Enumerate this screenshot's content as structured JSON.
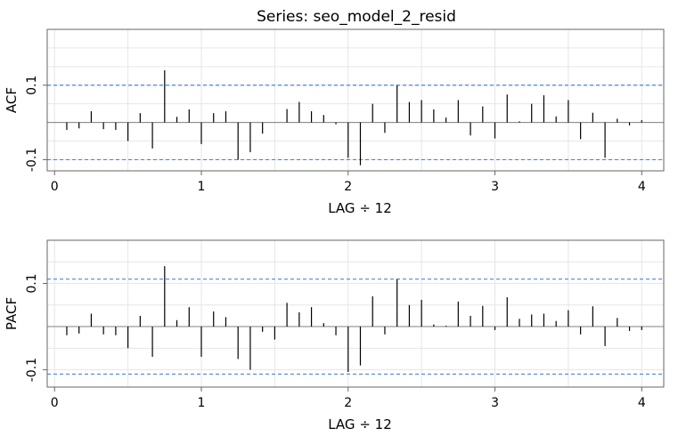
{
  "title": "Series:  seo_model_2_resid",
  "chart_data": [
    {
      "type": "bar",
      "name": "ACF",
      "ylabel": "ACF",
      "xlabel": "LAG ÷ 12",
      "xlim": [
        -0.05,
        4.15
      ],
      "ylim": [
        -0.13,
        0.25
      ],
      "x_ticks": [
        0,
        1,
        2,
        3,
        4
      ],
      "y_ticks": [
        -0.1,
        0.1
      ],
      "grid_x": [
        0,
        0.5,
        1,
        1.5,
        2,
        2.5,
        3,
        3.5,
        4
      ],
      "grid_y": [
        -0.15,
        -0.1,
        -0.05,
        0,
        0.05,
        0.1,
        0.15,
        0.2
      ],
      "confidence_bound": 0.1,
      "lags": [
        0.0833,
        0.1667,
        0.25,
        0.3333,
        0.4167,
        0.5,
        0.5833,
        0.6667,
        0.75,
        0.8333,
        0.9167,
        1.0,
        1.0833,
        1.1667,
        1.25,
        1.3333,
        1.4167,
        1.5,
        1.5833,
        1.6667,
        1.75,
        1.8333,
        1.9167,
        2.0,
        2.0833,
        2.1667,
        2.25,
        2.3333,
        2.4167,
        2.5,
        2.5833,
        2.6667,
        2.75,
        2.8333,
        2.9167,
        3.0,
        3.0833,
        3.1667,
        3.25,
        3.3333,
        3.4167,
        3.5,
        3.5833,
        3.6667,
        3.75,
        3.8333,
        3.9167,
        4.0
      ],
      "values": [
        -0.02,
        -0.016,
        0.03,
        -0.018,
        -0.02,
        -0.05,
        0.025,
        -0.07,
        0.14,
        0.015,
        0.035,
        -0.058,
        0.025,
        0.03,
        -0.1,
        -0.08,
        -0.03,
        0,
        0.036,
        0.055,
        0.03,
        0.02,
        -0.005,
        -0.095,
        -0.115,
        0.05,
        -0.028,
        0.1,
        0.055,
        0.06,
        0.035,
        0.013,
        0.06,
        -0.035,
        0.043,
        -0.043,
        0.075,
        0.003,
        0.05,
        0.073,
        0.016,
        0.06,
        -0.045,
        0.026,
        -0.095,
        0.01,
        -0.008,
        0.006
      ]
    },
    {
      "type": "bar",
      "name": "PACF",
      "ylabel": "PACF",
      "xlabel": "LAG ÷ 12",
      "xlim": [
        -0.05,
        4.15
      ],
      "ylim": [
        -0.14,
        0.2
      ],
      "x_ticks": [
        0,
        1,
        2,
        3,
        4
      ],
      "y_ticks": [
        -0.1,
        0.1
      ],
      "grid_x": [
        0,
        0.5,
        1,
        1.5,
        2,
        2.5,
        3,
        3.5,
        4
      ],
      "grid_y": [
        -0.1,
        -0.05,
        0,
        0.05,
        0.1,
        0.15
      ],
      "confidence_bound": 0.11,
      "lags": [
        0.0833,
        0.1667,
        0.25,
        0.3333,
        0.4167,
        0.5,
        0.5833,
        0.6667,
        0.75,
        0.8333,
        0.9167,
        1.0,
        1.0833,
        1.1667,
        1.25,
        1.3333,
        1.4167,
        1.5,
        1.5833,
        1.6667,
        1.75,
        1.8333,
        1.9167,
        2.0,
        2.0833,
        2.1667,
        2.25,
        2.3333,
        2.4167,
        2.5,
        2.5833,
        2.6667,
        2.75,
        2.8333,
        2.9167,
        3.0,
        3.0833,
        3.1667,
        3.25,
        3.3333,
        3.4167,
        3.5,
        3.5833,
        3.6667,
        3.75,
        3.8333,
        3.9167,
        4.0
      ],
      "values": [
        -0.02,
        -0.016,
        0.03,
        -0.018,
        -0.02,
        -0.05,
        0.025,
        -0.07,
        0.14,
        0.015,
        0.045,
        -0.07,
        0.035,
        0.022,
        -0.075,
        -0.1,
        -0.012,
        -0.03,
        0.055,
        0.033,
        0.045,
        0.008,
        -0.02,
        -0.105,
        -0.09,
        0.07,
        -0.018,
        0.11,
        0.05,
        0.062,
        0.005,
        0.002,
        0.058,
        0.025,
        0.048,
        -0.008,
        0.068,
        0.018,
        0.028,
        0.03,
        0.013,
        0.038,
        -0.018,
        0.047,
        -0.045,
        0.02,
        -0.01,
        -0.008
      ]
    }
  ]
}
